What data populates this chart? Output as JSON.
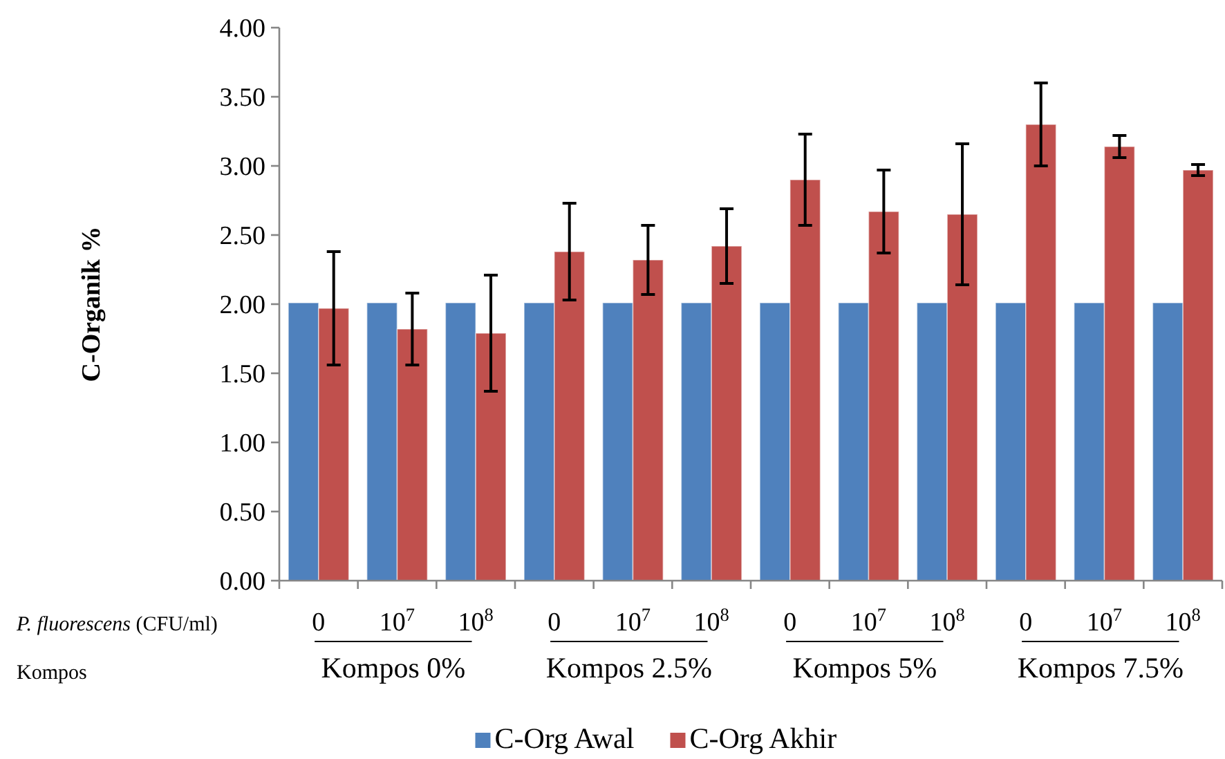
{
  "chart_data": {
    "type": "bar",
    "ylabel": "C-Organik %",
    "xlabel": "P. fluorescens (CFU/ml)",
    "categories": [
      "0",
      "10$^{7}$",
      "10$^{8}$",
      "0",
      "10$^{7}$",
      "10$^{8}$",
      "0",
      "10$^{7}$",
      "10$^{8}$",
      "0",
      "10$^{7}$",
      "10$^{8}$"
    ],
    "series": [
      {
        "name": "C-Org Awal",
        "color": "#4f81bd",
        "values": [
          2.01,
          2.01,
          2.01,
          2.01,
          2.01,
          2.01,
          2.01,
          2.01,
          2.01,
          2.01,
          2.01,
          2.01
        ]
      },
      {
        "name": "C-Org Akhir",
        "color": "#c0504d",
        "values": [
          1.97,
          1.82,
          1.79,
          2.38,
          2.32,
          2.42,
          2.9,
          2.67,
          2.65,
          3.3,
          3.14,
          2.97
        ],
        "errors": [
          0.41,
          0.26,
          0.42,
          0.35,
          0.25,
          0.27,
          0.33,
          0.3,
          0.51,
          0.3,
          0.08,
          0.04
        ]
      }
    ],
    "annotations": [
      "Kompos",
      "Kompos 0%",
      "Kompos 2.5%",
      "Kompos 5%",
      "Kompos 7.5%"
    ],
    "ylim": [
      0,
      4
    ],
    "yticks": [
      {
        "value": 0,
        "label": "0.00"
      },
      {
        "value": 0.5,
        "label": "0.50"
      },
      {
        "value": 1,
        "label": "1.00"
      },
      {
        "value": 1.5,
        "label": "1.50"
      },
      {
        "value": 2,
        "label": "2.00"
      },
      {
        "value": 2.5,
        "label": "2.50"
      },
      {
        "value": 3,
        "label": "3.00"
      },
      {
        "value": 3.5,
        "label": "3.50"
      },
      {
        "value": 4,
        "label": "4.00"
      }
    ],
    "grid": false,
    "legend": "bottom"
  }
}
